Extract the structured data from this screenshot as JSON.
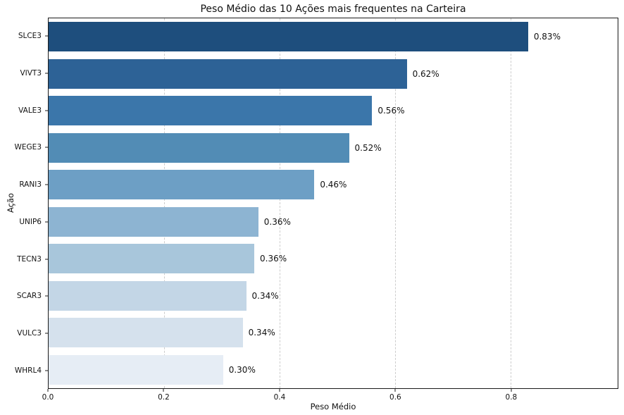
{
  "chart_data": {
    "type": "bar",
    "orientation": "horizontal",
    "title": "Peso Médio das 10 Ações mais frequentes na Carteira",
    "xlabel": "Peso Médio",
    "ylabel": "Ação",
    "categories": [
      "SLCE3",
      "VIVT3",
      "VALE3",
      "WEGE3",
      "RANI3",
      "UNIP6",
      "TECN3",
      "SCAR3",
      "VULC3",
      "WHRL4"
    ],
    "values": [
      0.83,
      0.62,
      0.56,
      0.52,
      0.46,
      0.363,
      0.356,
      0.342,
      0.336,
      0.302
    ],
    "bar_labels": [
      "0.83%",
      "0.62%",
      "0.56%",
      "0.52%",
      "0.46%",
      "0.36%",
      "0.36%",
      "0.34%",
      "0.34%",
      "0.30%"
    ],
    "bar_colors": [
      "#1e4e7d",
      "#2d6296",
      "#3b76aa",
      "#528cb5",
      "#6d9fc5",
      "#8db4d2",
      "#a8c6db",
      "#c3d6e6",
      "#d5e1ed",
      "#e6edf5"
    ],
    "xlim": [
      0,
      0.985
    ],
    "xticks": [
      0.0,
      0.2,
      0.4,
      0.6,
      0.8
    ],
    "xtick_labels": [
      "0.0",
      "0.2",
      "0.4",
      "0.6",
      "0.8"
    ],
    "grid": "vertical-dashed",
    "legend": "none"
  },
  "colors": {
    "spine": "#1a1a1a",
    "grid": "#cccccc",
    "background": "#ffffff",
    "text": "#111111"
  }
}
